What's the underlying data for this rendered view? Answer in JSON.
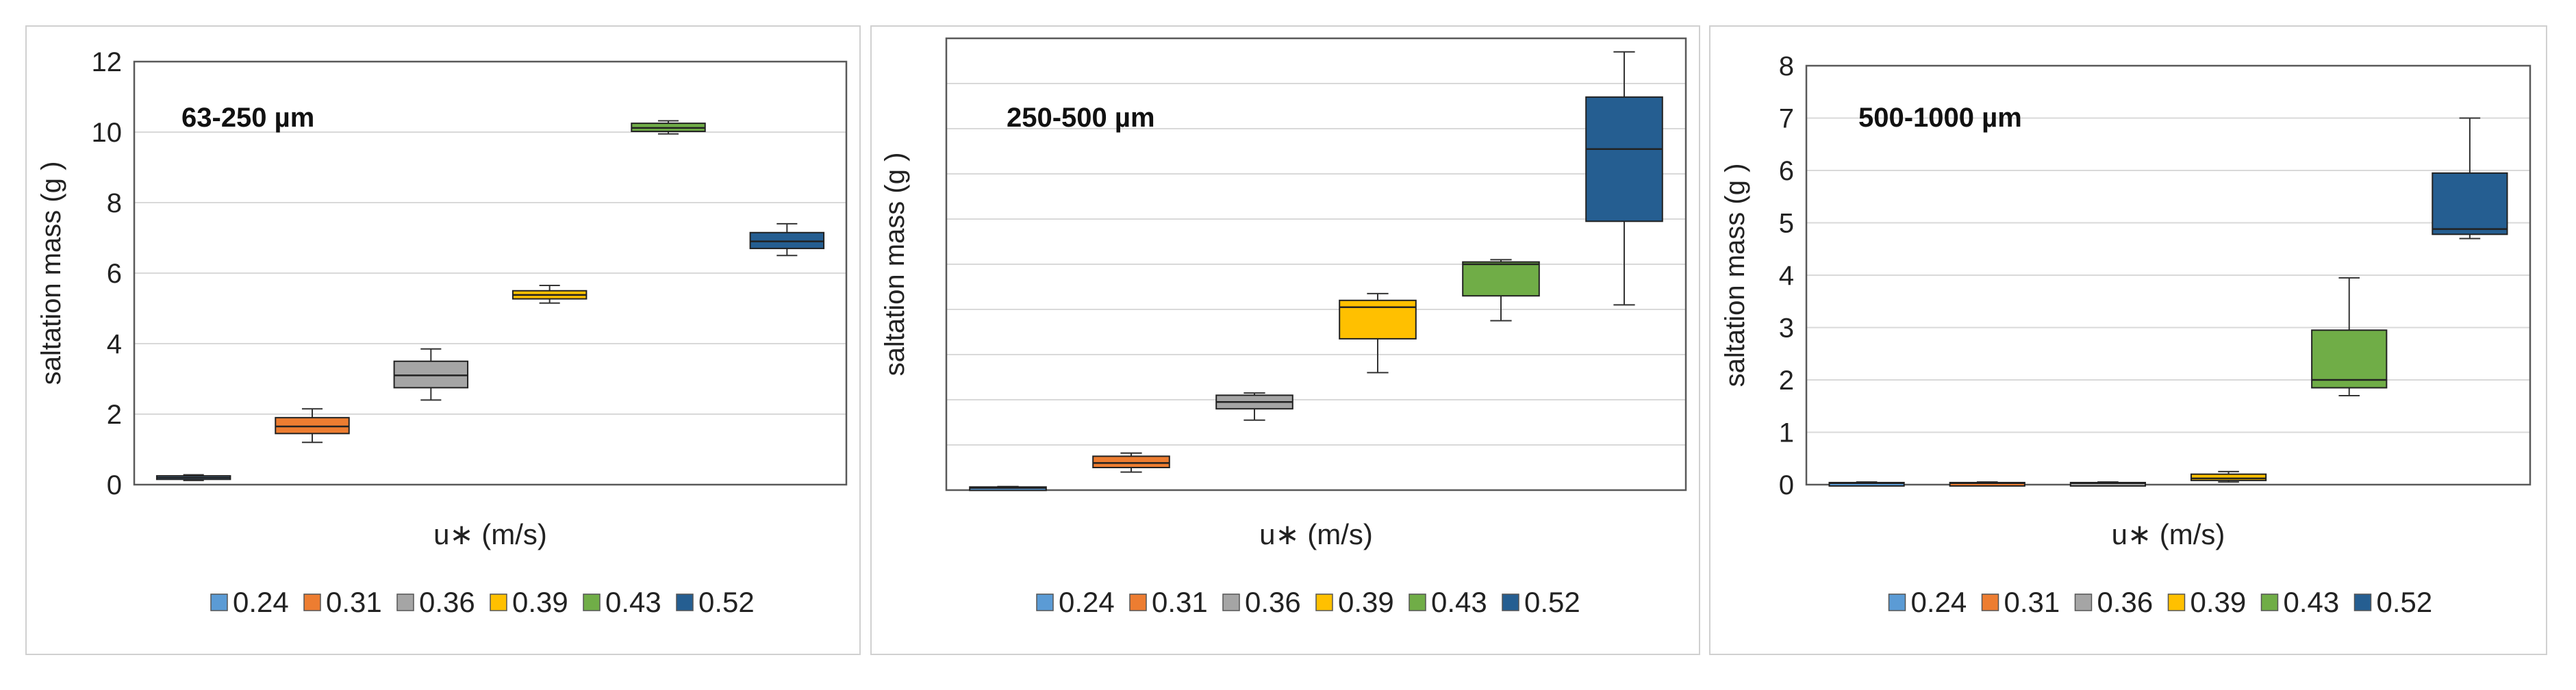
{
  "legend_labels": [
    "0.24",
    "0.31",
    "0.36",
    "0.39",
    "0.43",
    "0.52"
  ],
  "colors": {
    "0.24": "#5b9bd5",
    "0.31": "#ed7d31",
    "0.36": "#a5a5a5",
    "0.39": "#ffc000",
    "0.43": "#70ad47",
    "0.52": "#255e91",
    "gridline": "#d9d9d9",
    "frame": "#595959"
  },
  "chart_data": [
    {
      "type": "box",
      "title": "63-250 µm",
      "xlabel": "u∗ (m/s)",
      "ylabel": "saltation mass  (g )",
      "ylim": [
        0,
        12
      ],
      "yticks": [
        0,
        2,
        4,
        6,
        8,
        10,
        12
      ],
      "show_tick_labels": true,
      "grid": true,
      "legend": "bottom",
      "series": [
        {
          "name": "0.24",
          "min": 0.12,
          "q1": 0.15,
          "median": 0.2,
          "q3": 0.25,
          "max": 0.28
        },
        {
          "name": "0.31",
          "min": 1.2,
          "q1": 1.45,
          "median": 1.65,
          "q3": 1.9,
          "max": 2.15
        },
        {
          "name": "0.36",
          "min": 2.4,
          "q1": 2.75,
          "median": 3.1,
          "q3": 3.5,
          "max": 3.85
        },
        {
          "name": "0.39",
          "min": 5.15,
          "q1": 5.27,
          "median": 5.38,
          "q3": 5.5,
          "max": 5.65
        },
        {
          "name": "0.43",
          "min": 9.95,
          "q1": 10.02,
          "median": 10.12,
          "q3": 10.25,
          "max": 10.32
        },
        {
          "name": "0.52",
          "min": 6.5,
          "q1": 6.7,
          "median": 6.9,
          "q3": 7.15,
          "max": 7.4
        }
      ]
    },
    {
      "type": "box",
      "title": "250-500 µm",
      "xlabel": "u∗ (m/s)",
      "ylabel": "saltation mass  (g )",
      "ylim": [
        0,
        10
      ],
      "yticks": [
        0,
        1,
        2,
        3,
        4,
        5,
        6,
        7,
        8,
        9,
        10
      ],
      "show_tick_labels": false,
      "grid": true,
      "legend": "bottom",
      "series": [
        {
          "name": "0.24",
          "min": 0.02,
          "q1": 0.03,
          "median": 0.05,
          "q3": 0.07,
          "max": 0.08
        },
        {
          "name": "0.31",
          "min": 0.4,
          "q1": 0.5,
          "median": 0.6,
          "q3": 0.75,
          "max": 0.82
        },
        {
          "name": "0.36",
          "min": 1.55,
          "q1": 1.8,
          "median": 1.95,
          "q3": 2.1,
          "max": 2.15
        },
        {
          "name": "0.39",
          "min": 2.6,
          "q1": 3.35,
          "median": 4.05,
          "q3": 4.2,
          "max": 4.35
        },
        {
          "name": "0.43",
          "min": 3.75,
          "q1": 4.3,
          "median": 5.0,
          "q3": 5.05,
          "max": 5.1
        },
        {
          "name": "0.52",
          "min": 4.1,
          "q1": 5.95,
          "median": 7.55,
          "q3": 8.7,
          "max": 9.7
        }
      ]
    },
    {
      "type": "box",
      "title": "500-1000 µm",
      "xlabel": "u∗ (m/s)",
      "ylabel": "saltation mass  (g )",
      "ylim": [
        0,
        8
      ],
      "yticks": [
        0,
        1,
        2,
        3,
        4,
        5,
        6,
        7,
        8
      ],
      "show_tick_labels": true,
      "grid": true,
      "legend": "bottom",
      "series": [
        {
          "name": "0.24",
          "min": 0.01,
          "q1": 0.02,
          "median": 0.03,
          "q3": 0.04,
          "max": 0.05
        },
        {
          "name": "0.31",
          "min": 0.01,
          "q1": 0.02,
          "median": 0.03,
          "q3": 0.04,
          "max": 0.05
        },
        {
          "name": "0.36",
          "min": 0.01,
          "q1": 0.02,
          "median": 0.03,
          "q3": 0.04,
          "max": 0.05
        },
        {
          "name": "0.39",
          "min": 0.05,
          "q1": 0.08,
          "median": 0.12,
          "q3": 0.2,
          "max": 0.25
        },
        {
          "name": "0.43",
          "min": 1.7,
          "q1": 1.85,
          "median": 2.0,
          "q3": 2.95,
          "max": 3.95
        },
        {
          "name": "0.52",
          "min": 4.7,
          "q1": 4.78,
          "median": 4.88,
          "q3": 5.95,
          "max": 7.0
        }
      ]
    }
  ]
}
